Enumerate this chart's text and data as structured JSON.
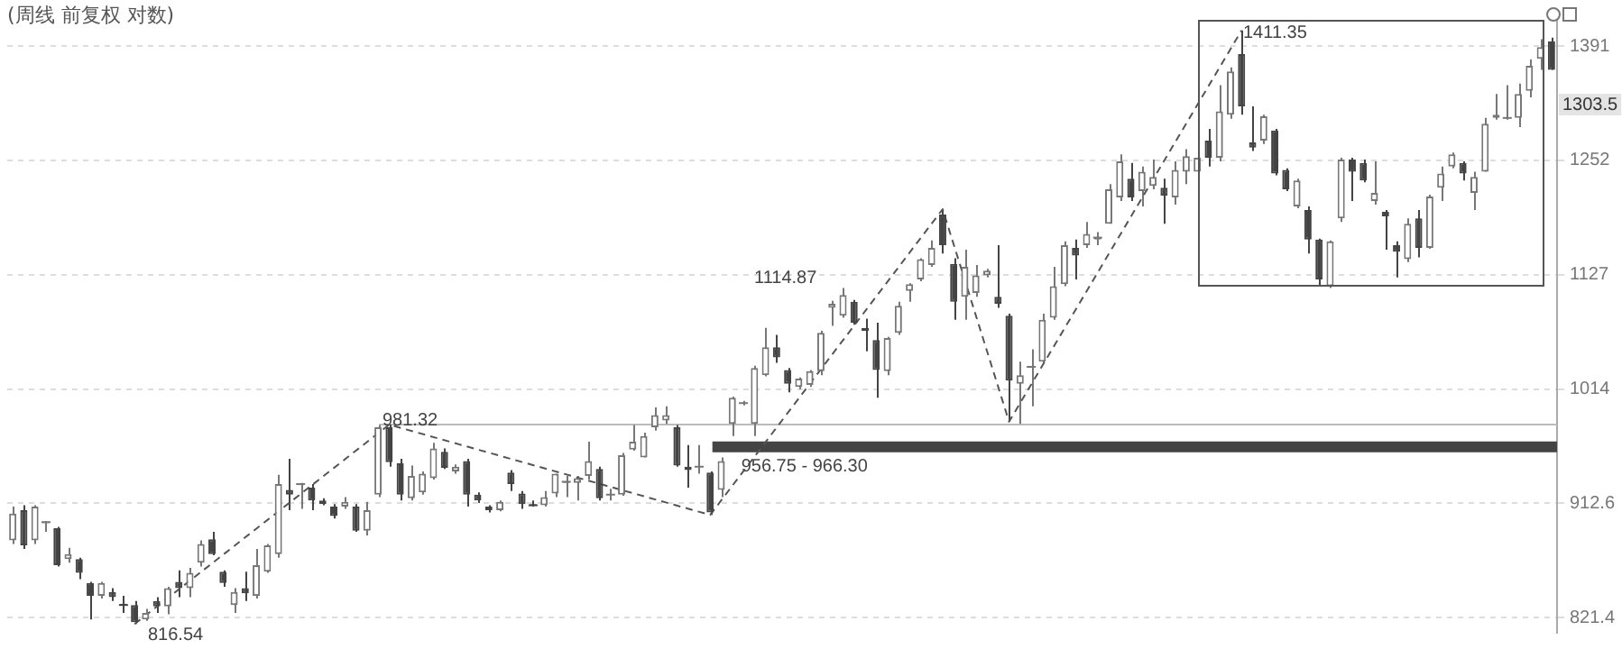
{
  "chart_data": {
    "type": "candlestick",
    "title": "(周线 前复权 对数)",
    "categories": [
      null,
      null,
      null,
      null,
      null,
      null,
      null,
      null,
      null,
      null,
      null,
      null,
      null,
      null,
      null,
      null,
      null,
      null,
      null,
      null,
      null,
      null,
      null,
      null,
      null,
      null,
      null,
      null,
      null,
      null,
      null,
      null,
      null,
      null,
      null,
      null,
      null,
      null,
      null,
      null,
      null,
      null,
      null,
      null,
      null,
      null,
      null,
      null,
      null,
      null,
      null,
      null,
      null,
      null,
      null,
      null,
      null,
      null,
      null,
      null,
      null,
      null,
      null,
      null,
      null,
      null,
      null,
      null,
      null,
      null,
      null,
      null,
      null,
      null,
      null,
      null,
      null,
      null,
      null,
      null,
      null,
      null,
      null,
      null,
      null,
      null,
      null,
      null,
      null,
      null,
      null,
      null,
      null,
      null,
      null,
      null,
      null,
      null,
      null,
      null,
      null,
      null,
      null,
      null,
      null,
      null,
      null,
      null,
      null,
      null,
      null,
      null,
      null,
      null,
      null,
      null,
      null,
      null,
      null,
      null,
      null,
      null,
      null,
      null,
      null,
      null,
      null,
      null,
      null,
      null,
      null,
      null,
      null,
      null,
      null,
      null,
      null,
      null,
      null,
      null
    ],
    "series": [
      {
        "type": "candlestick",
        "colors": [
          "#777777",
          "#444444",
          "#777777",
          "#777777",
          "#444444",
          "#777777",
          "#444444",
          "#444444",
          "#777777",
          "#444444",
          "#444444",
          "#444444",
          "#777777",
          "#444444",
          "#777777",
          "#444444",
          "#777777",
          "#777777",
          "#444444",
          "#444444",
          "#777777",
          "#444444",
          "#777777",
          "#777777",
          "#777777",
          "#444444",
          "#777777",
          "#444444",
          "#444444",
          "#444444",
          "#777777",
          "#444444",
          "#777777",
          "#777777",
          "#444444",
          "#444444",
          "#777777",
          "#777777",
          "#777777",
          "#444444",
          "#777777",
          "#444444",
          "#444444",
          "#444444",
          "#777777",
          "#444444",
          "#444444",
          "#444444",
          "#777777",
          "#777777",
          "#777777",
          "#777777",
          "#777777",
          "#444444",
          "#777777",
          "#777777",
          "#777777",
          "#777777",
          "#777777",
          "#777777",
          "#444444",
          "#444444",
          "#777777",
          "#444444",
          "#777777",
          "#777777",
          "#777777",
          "#777777",
          "#777777",
          "#444444",
          "#444444",
          "#777777",
          "#777777",
          "#777777",
          "#777777",
          "#777777",
          "#444444",
          "#444444",
          "#444444",
          "#777777",
          "#777777",
          "#777777",
          "#777777",
          "#777777",
          "#444444",
          "#444444",
          "#777777",
          "#777777",
          "#777777",
          "#444444",
          "#444444",
          "#777777",
          "#777777",
          "#777777",
          "#777777",
          "#777777",
          "#444444",
          "#777777",
          "#777777",
          "#777777",
          "#777777",
          "#444444",
          "#777777",
          "#777777",
          "#444444",
          "#777777",
          "#777777",
          "#777777",
          "#444444",
          "#777777",
          "#777777",
          "#444444",
          "#444444",
          "#777777",
          "#444444",
          "#444444",
          "#777777",
          "#444444",
          "#444444",
          "#777777",
          "#777777",
          "#444444",
          "#444444",
          "#777777",
          "#444444",
          "#444444",
          "#777777",
          "#444444",
          "#777777",
          "#777777",
          "#777777",
          "#444444",
          "#777777",
          "#777777",
          "#777777",
          "#777777",
          "#777777",
          "#777777",
          "#777777",
          "#444444"
        ],
        "ohlc": [
          [
            882,
            910,
            879,
            904
          ],
          [
            907,
            911,
            875,
            878
          ],
          [
            882,
            911,
            879,
            910
          ],
          [
            896,
            898,
            889,
            897
          ],
          [
            892,
            893,
            861,
            862
          ],
          [
            867,
            876,
            864,
            871
          ],
          [
            867,
            868,
            851,
            856
          ],
          [
            848,
            849,
            820,
            838
          ],
          [
            838,
            849,
            836,
            848
          ],
          [
            841,
            844,
            834,
            837
          ],
          [
            832,
            838,
            825,
            831
          ],
          [
            831,
            834,
            816.54,
            818
          ],
          [
            820,
            828,
            819,
            825
          ],
          [
            834,
            837,
            825,
            830
          ],
          [
            830,
            845,
            824,
            844
          ],
          [
            849,
            858,
            837,
            844
          ],
          [
            844,
            860,
            837,
            856
          ],
          [
            864,
            882,
            861,
            879
          ],
          [
            883,
            889,
            870,
            871
          ],
          [
            857,
            858,
            845,
            848
          ],
          [
            831,
            844,
            825,
            841
          ],
          [
            844,
            857,
            834,
            840
          ],
          [
            838,
            875,
            836,
            862
          ],
          [
            857,
            879,
            856,
            878
          ],
          [
            871,
            937,
            868,
            929
          ],
          [
            924,
            951,
            907,
            920
          ],
          [
            928,
            930,
            908,
            929
          ],
          [
            926,
            929,
            907,
            915
          ],
          [
            915,
            917,
            911,
            912
          ],
          [
            910,
            912,
            900,
            902
          ],
          [
            910,
            918,
            908,
            914
          ],
          [
            910,
            912,
            889,
            890
          ],
          [
            890,
            914,
            886,
            907
          ],
          [
            920,
            981,
            918,
            979
          ],
          [
            979,
            981.32,
            944,
            948
          ],
          [
            947,
            951,
            915,
            920
          ],
          [
            917,
            945,
            915,
            936
          ],
          [
            922,
            940,
            920,
            938
          ],
          [
            934,
            965,
            933,
            960
          ],
          [
            957,
            960,
            942,
            943
          ],
          [
            940,
            946,
            938,
            944
          ],
          [
            949,
            951,
            910,
            920
          ],
          [
            920,
            922,
            913,
            915
          ],
          [
            910,
            911,
            905,
            907
          ],
          [
            907,
            915,
            906,
            914
          ],
          [
            939,
            941,
            923,
            929
          ],
          [
            921,
            923,
            908,
            912
          ],
          [
            912,
            915,
            910,
            911
          ],
          [
            911,
            923,
            910,
            918
          ],
          [
            921,
            938,
            918,
            938
          ],
          [
            930,
            936,
            918,
            931
          ],
          [
            930,
            936,
            915,
            934
          ],
          [
            936,
            966,
            933,
            949
          ],
          [
            942,
            944,
            915,
            917
          ],
          [
            920,
            925,
            915,
            920
          ],
          [
            920,
            956,
            919,
            954
          ],
          [
            959,
            981,
            958,
            966
          ],
          [
            952,
            974,
            952,
            971
          ],
          [
            979,
            997,
            976,
            990
          ],
          [
            985,
            998,
            982,
            990
          ],
          [
            979,
            981,
            944,
            945
          ],
          [
            944,
            963,
            926,
            941
          ],
          [
            944,
            963,
            938,
            944
          ],
          [
            939,
            940,
            903,
            905
          ],
          [
            924,
            952,
            918,
            949
          ],
          [
            982,
            1007,
            971,
            1006
          ],
          [
            1001,
            1003,
            999,
            1001
          ],
          [
            982,
            1036,
            971,
            1034
          ],
          [
            1027,
            1073,
            1026,
            1054
          ],
          [
            1054,
            1066,
            1039,
            1044
          ],
          [
            1032,
            1034,
            1011,
            1019
          ],
          [
            1016,
            1025,
            1014,
            1024
          ],
          [
            1018,
            1032,
            1016,
            1031
          ],
          [
            1031,
            1070,
            1027,
            1068
          ],
          [
            1093,
            1100,
            1075,
            1097
          ],
          [
            1085,
            1113,
            1083,
            1106
          ],
          [
            1099,
            1101,
            1076,
            1078
          ],
          [
            1073,
            1082,
            1050,
            1070
          ],
          [
            1061,
            1078,
            1006,
            1032
          ],
          [
            1031,
            1064,
            1027,
            1063
          ],
          [
            1068,
            1099,
            1066,
            1095
          ],
          [
            1110,
            1118,
            1099,
            1117
          ],
          [
            1122,
            1144,
            1120,
            1143
          ],
          [
            1137,
            1163,
            1135,
            1155
          ],
          [
            1191,
            1197,
            1149,
            1158
          ],
          [
            1138,
            1144,
            1081,
            1099
          ],
          [
            1104,
            1153,
            1081,
            1135
          ],
          [
            1108,
            1137,
            1104,
            1126
          ],
          [
            1126,
            1133,
            1124,
            1131
          ],
          [
            1104,
            1158,
            1093,
            1097
          ],
          [
            1085,
            1087,
            984,
            1022
          ],
          [
            1019,
            1040,
            982,
            1027
          ],
          [
            1035,
            1052,
            998,
            1035
          ],
          [
            1040,
            1087,
            1039,
            1081
          ],
          [
            1083,
            1135,
            1081,
            1115
          ],
          [
            1117,
            1162,
            1115,
            1158
          ],
          [
            1155,
            1164,
            1122,
            1147
          ],
          [
            1158,
            1183,
            1155,
            1170
          ],
          [
            1164,
            1172,
            1158,
            1166
          ],
          [
            1181,
            1225,
            1181,
            1219
          ],
          [
            1210,
            1259,
            1206,
            1251
          ],
          [
            1231,
            1249,
            1206,
            1210
          ],
          [
            1217,
            1245,
            1200,
            1239
          ],
          [
            1223,
            1253,
            1219,
            1233
          ],
          [
            1221,
            1231,
            1181,
            1212
          ],
          [
            1210,
            1251,
            1202,
            1241
          ],
          [
            1239,
            1265,
            1225,
            1257
          ],
          [
            1239,
            1271,
            1229,
            1255
          ],
          [
            1275,
            1289,
            1245,
            1255
          ],
          [
            1255,
            1342,
            1251,
            1310
          ],
          [
            1306,
            1364,
            1301,
            1359
          ],
          [
            1381,
            1411.35,
            1306,
            1316
          ],
          [
            1273,
            1316,
            1263,
            1267
          ],
          [
            1275,
            1306,
            1271,
            1304
          ],
          [
            1287,
            1289,
            1235,
            1237
          ],
          [
            1241,
            1243,
            1217,
            1219
          ],
          [
            1200,
            1231,
            1198,
            1229
          ],
          [
            1196,
            1200,
            1149,
            1164
          ],
          [
            1164,
            1165,
            1115,
            1122
          ],
          [
            1115,
            1163,
            1113,
            1162
          ],
          [
            1187,
            1255,
            1183,
            1253
          ],
          [
            1253,
            1255,
            1206,
            1239
          ],
          [
            1249,
            1253,
            1227,
            1229
          ],
          [
            1206,
            1251,
            1202,
            1215
          ],
          [
            1194,
            1196,
            1153,
            1189
          ],
          [
            1158,
            1162,
            1124,
            1151
          ],
          [
            1143,
            1187,
            1140,
            1181
          ],
          [
            1187,
            1196,
            1145,
            1155
          ],
          [
            1155,
            1213,
            1154,
            1211
          ],
          [
            1221,
            1245,
            1206,
            1237
          ],
          [
            1245,
            1261,
            1243,
            1259
          ],
          [
            1249,
            1251,
            1229,
            1237
          ],
          [
            1215,
            1239,
            1196,
            1233
          ],
          [
            1239,
            1302,
            1239,
            1295
          ],
          [
            1302,
            1331,
            1300,
            1306
          ],
          [
            1302,
            1342,
            1300,
            1302
          ],
          [
            1302,
            1344,
            1291,
            1331
          ],
          [
            1335,
            1374,
            1327,
            1366
          ],
          [
            1375,
            1400,
            1361,
            1390
          ],
          [
            1397,
            1402,
            1361,
            1361
          ]
        ]
      },
      {
        "type": "line",
        "color": "#555555",
        "line_style": "dashed",
        "marker": "none",
        "values": [
          null,
          null,
          null,
          null,
          null,
          null,
          null,
          null,
          null,
          null,
          null,
          816.54,
          null,
          null,
          null,
          null,
          null,
          null,
          null,
          null,
          null,
          null,
          null,
          null,
          null,
          null,
          null,
          null,
          null,
          null,
          null,
          null,
          null,
          null,
          981.32,
          null,
          null,
          null,
          null,
          null,
          null,
          null,
          null,
          null,
          null,
          null,
          null,
          null,
          null,
          null,
          null,
          null,
          null,
          null,
          null,
          null,
          null,
          null,
          null,
          null,
          null,
          null,
          null,
          903,
          null,
          null,
          null,
          null,
          null,
          null,
          null,
          null,
          null,
          null,
          null,
          null,
          null,
          null,
          null,
          null,
          null,
          null,
          null,
          null,
          1197,
          null,
          null,
          null,
          null,
          null,
          984,
          null,
          null,
          null,
          null,
          null,
          null,
          null,
          null,
          null,
          null,
          null,
          null,
          null,
          null,
          null,
          null,
          null,
          null,
          null,
          null,
          1411.35,
          null,
          null,
          null,
          null,
          null,
          null,
          null,
          null,
          null,
          null,
          null,
          null,
          null,
          null,
          null,
          null,
          null,
          null,
          null,
          null,
          null,
          null,
          null,
          null,
          null,
          null,
          null,
          null
        ]
      }
    ],
    "log": true,
    "ylim": [
      810,
      1430
    ],
    "yticks": [
      1391,
      1252,
      1127,
      1014,
      912.6,
      821.4
    ],
    "grid": "y",
    "tick_labels": "y",
    "ref_lines": [
      {
        "axis": "y",
        "value": 981.32,
        "color": "#bbbbbb"
      }
    ],
    "bands": [
      {
        "axis": "y",
        "from": 956.75,
        "to": 966.3,
        "label": "956.75 - 966.30",
        "color": "#444444"
      }
    ],
    "annotations": [
      "1411.35",
      "816.54",
      "981.32",
      "1114.87",
      "1303.5"
    ]
  }
}
